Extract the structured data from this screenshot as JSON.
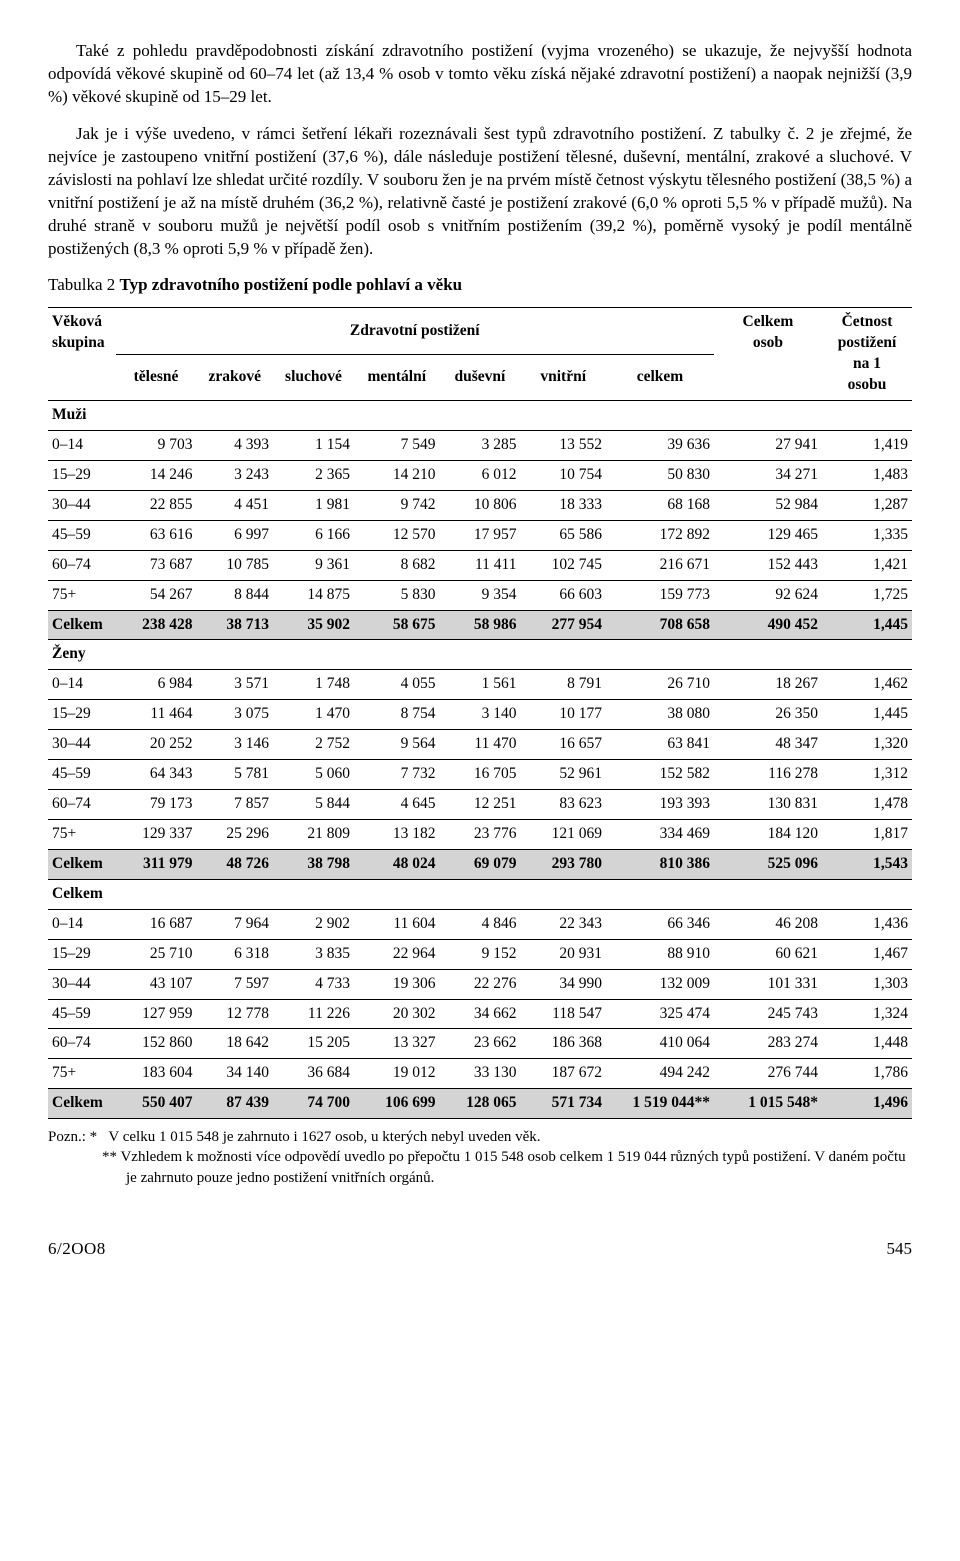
{
  "paragraphs": {
    "p1": "Také z pohledu pravděpodobnosti získání zdravotního postižení (vyjma vrozeného) se ukazuje, že nejvyšší hodnota odpovídá věkové skupině od 60–74 let (až 13,4 % osob v tomto věku získá nějaké zdravotní postižení) a naopak nejnižší (3,9 %) věkové skupině od 15–29 let.",
    "p2": "Jak je i výše uvedeno, v rámci šetření lékaři rozeznávali šest typů zdravotního postižení. Z tabulky č. 2 je zřejmé, že nejvíce je zastoupeno vnitřní postižení (37,6 %), dále následuje postižení tělesné, duševní, mentální, zrakové a sluchové. V závislosti na pohlaví lze shledat určité rozdíly. V souboru žen je na prvém místě četnost výskytu tělesného postižení (38,5 %) a vnitřní postižení je až na místě druhém (36,2 %), relativně časté je postižení zrakové (6,0 % oproti 5,5 % v případě mužů). Na druhé straně v souboru mužů je největší podíl osob s vnitřním postižením (39,2 %), poměrně vysoký je podíl mentálně postižených (8,3 % oproti 5,9 % v případě žen)."
  },
  "caption": {
    "prefix": "Tabulka 2 ",
    "bold": "Typ zdravotního postižení podle pohlaví a věku"
  },
  "headers": {
    "vekova": "Věková",
    "skupina": "skupina",
    "zdrav": "Zdravotní postižení",
    "celkem_osob_1": "Celkem",
    "celkem_osob_2": "osob",
    "cetnost_1": "Četnost",
    "cetnost_2": "postižení",
    "cetnost_3": "na 1",
    "cetnost_4": "osobu",
    "sub": [
      "tělesné",
      "zrakové",
      "sluchové",
      "mentální",
      "duševní",
      "vnitřní",
      "celkem"
    ]
  },
  "sections": {
    "muzi": "Muži",
    "zeny": "Ženy",
    "celkem": "Celkem"
  },
  "rows_muzi": [
    [
      "0–14",
      "9 703",
      "4 393",
      "1 154",
      "7 549",
      "3 285",
      "13 552",
      "39 636",
      "27 941",
      "1,419"
    ],
    [
      "15–29",
      "14 246",
      "3 243",
      "2 365",
      "14 210",
      "6 012",
      "10 754",
      "50 830",
      "34 271",
      "1,483"
    ],
    [
      "30–44",
      "22 855",
      "4 451",
      "1 981",
      "9 742",
      "10 806",
      "18 333",
      "68 168",
      "52 984",
      "1,287"
    ],
    [
      "45–59",
      "63 616",
      "6 997",
      "6 166",
      "12 570",
      "17 957",
      "65 586",
      "172 892",
      "129 465",
      "1,335"
    ],
    [
      "60–74",
      "73 687",
      "10 785",
      "9 361",
      "8 682",
      "11 411",
      "102 745",
      "216 671",
      "152 443",
      "1,421"
    ],
    [
      "75+",
      "54 267",
      "8 844",
      "14 875",
      "5 830",
      "9 354",
      "66 603",
      "159 773",
      "92 624",
      "1,725"
    ]
  ],
  "total_muzi": [
    "Celkem",
    "238 428",
    "38 713",
    "35 902",
    "58 675",
    "58 986",
    "277 954",
    "708 658",
    "490 452",
    "1,445"
  ],
  "rows_zeny": [
    [
      "0–14",
      "6 984",
      "3 571",
      "1 748",
      "4 055",
      "1 561",
      "8 791",
      "26 710",
      "18 267",
      "1,462"
    ],
    [
      "15–29",
      "11 464",
      "3 075",
      "1 470",
      "8 754",
      "3 140",
      "10 177",
      "38 080",
      "26 350",
      "1,445"
    ],
    [
      "30–44",
      "20 252",
      "3 146",
      "2 752",
      "9 564",
      "11 470",
      "16 657",
      "63 841",
      "48 347",
      "1,320"
    ],
    [
      "45–59",
      "64 343",
      "5 781",
      "5 060",
      "7 732",
      "16 705",
      "52 961",
      "152 582",
      "116 278",
      "1,312"
    ],
    [
      "60–74",
      "79 173",
      "7 857",
      "5 844",
      "4 645",
      "12 251",
      "83 623",
      "193 393",
      "130 831",
      "1,478"
    ],
    [
      "75+",
      "129 337",
      "25 296",
      "21 809",
      "13 182",
      "23 776",
      "121 069",
      "334 469",
      "184 120",
      "1,817"
    ]
  ],
  "total_zeny": [
    "Celkem",
    "311 979",
    "48 726",
    "38 798",
    "48 024",
    "69 079",
    "293 780",
    "810 386",
    "525 096",
    "1,543"
  ],
  "rows_celkem": [
    [
      "0–14",
      "16 687",
      "7 964",
      "2 902",
      "11 604",
      "4 846",
      "22 343",
      "66 346",
      "46 208",
      "1,436"
    ],
    [
      "15–29",
      "25 710",
      "6 318",
      "3 835",
      "22 964",
      "9 152",
      "20 931",
      "88 910",
      "60 621",
      "1,467"
    ],
    [
      "30–44",
      "43 107",
      "7 597",
      "4 733",
      "19 306",
      "22 276",
      "34 990",
      "132 009",
      "101 331",
      "1,303"
    ],
    [
      "45–59",
      "127 959",
      "12 778",
      "11 226",
      "20 302",
      "34 662",
      "118 547",
      "325 474",
      "245 743",
      "1,324"
    ],
    [
      "60–74",
      "152 860",
      "18 642",
      "15 205",
      "13 327",
      "23 662",
      "186 368",
      "410 064",
      "283 274",
      "1,448"
    ],
    [
      "75+",
      "183 604",
      "34 140",
      "36 684",
      "19 012",
      "33 130",
      "187 672",
      "494 242",
      "276 744",
      "1,786"
    ]
  ],
  "total_celkem": [
    "Celkem",
    "550 407",
    "87 439",
    "74 700",
    "106 699",
    "128 065",
    "571 734",
    "1 519 044**",
    "1 015 548*",
    "1,496"
  ],
  "footnotes": {
    "f1a": "Pozn.: *",
    "f1b": "V celku 1 015 548 je zahrnuto i 1627 osob, u kterých nebyl uveden věk.",
    "f2": "** Vzhledem k možnosti více odpovědí uvedlo po přepočtu 1 015 548 osob celkem 1 519 044 různých typů postižení. V daném počtu je zahrnuto pouze jedno postižení vnitřních orgánů."
  },
  "footer": {
    "issue": "6/2OO8",
    "page": "545"
  }
}
